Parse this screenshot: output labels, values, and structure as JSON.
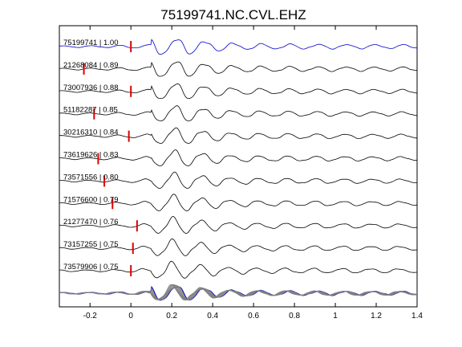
{
  "chart_data": {
    "type": "line",
    "title": "75199741.NC.CVL.EHZ",
    "xlabel": "",
    "ylabel": "",
    "xlim": [
      -0.35,
      1.4
    ],
    "xticks": [
      -0.2,
      0,
      0.2,
      0.4,
      0.6,
      0.8,
      1,
      1.2,
      1.4
    ],
    "xtick_labels": [
      "-0.2",
      "0",
      "0.2",
      "0.4",
      "0.6",
      "0.8",
      "1",
      "1.2",
      "1.4"
    ],
    "grid": false,
    "reference_color": "#0000cc",
    "trace_color": "#000000",
    "pick_color": "#dd0000",
    "stack_color": "#808080",
    "traces": [
      {
        "label": "75199741 | 1.00",
        "id": "75199741",
        "cc": 1.0,
        "pick": 0.0,
        "reference": true
      },
      {
        "label": "21268084 | 0.89",
        "id": "21268084",
        "cc": 0.89,
        "pick": -0.23,
        "reference": false
      },
      {
        "label": "73007936 | 0.88",
        "id": "73007936",
        "cc": 0.88,
        "pick": 0.0,
        "reference": false
      },
      {
        "label": "51182287 | 0.85",
        "id": "51182287",
        "cc": 0.85,
        "pick": -0.18,
        "reference": false
      },
      {
        "label": "30216310 | 0.84",
        "id": "30216310",
        "cc": 0.84,
        "pick": -0.01,
        "reference": false
      },
      {
        "label": "73619626 | 0.83",
        "id": "73619626",
        "cc": 0.83,
        "pick": -0.16,
        "reference": false
      },
      {
        "label": "73571556 | 0.80",
        "id": "73571556",
        "cc": 0.8,
        "pick": -0.13,
        "reference": false
      },
      {
        "label": "71576600 | 0.79",
        "id": "71576600",
        "cc": 0.79,
        "pick": -0.09,
        "reference": false
      },
      {
        "label": "21277470 | 0.76",
        "id": "21277470",
        "cc": 0.76,
        "pick": 0.03,
        "reference": false
      },
      {
        "label": "73157255 | 0.75",
        "id": "73157255",
        "cc": 0.75,
        "pick": 0.01,
        "reference": false
      },
      {
        "label": "73579906 | 0.75",
        "id": "73579906",
        "cc": 0.75,
        "pick": 0.0,
        "reference": false
      }
    ]
  }
}
